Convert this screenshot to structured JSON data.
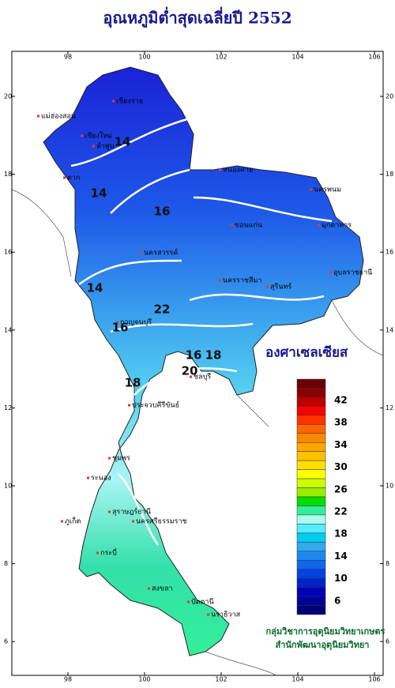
{
  "title": "อุณหภูมิต่ำสุดเฉลี่ยปี 2552",
  "map": {
    "lon_ticks": [
      98,
      100,
      102,
      104,
      106
    ],
    "lat_ticks": [
      20,
      18,
      16,
      14,
      12,
      10,
      8,
      6
    ],
    "places": [
      "เชียงราย",
      "เชียงใหม่",
      "ลำพูน",
      "แม่ฮ่องสอน",
      "ตาก",
      "หนองคาย",
      "นครพนม",
      "มุกดาหาร",
      "ขอนแก่น",
      "นครสวรรค์",
      "นครราชสีมา",
      "สุรินทร์",
      "อุบลราชธานี",
      "กาญจนบุรี",
      "ชลบุรี",
      "ประจวบคีรีขันธ์",
      "ชุมพร",
      "ระนอง",
      "สุราษฎร์ธานี",
      "นครศรีธรรมราช",
      "ภูเก็ต",
      "กระบี่",
      "สงขลา",
      "ปัตตานี",
      "นราธิวาส"
    ],
    "contour_labels": [
      "14",
      "14",
      "16",
      "14",
      "16",
      "16",
      "18",
      "20",
      "18",
      "22"
    ]
  },
  "legend": {
    "title": "องศาเซลเซียส",
    "labels": [
      "42",
      "38",
      "34",
      "30",
      "26",
      "22",
      "18",
      "14",
      "10",
      "6"
    ],
    "colors": [
      "#6b0000",
      "#8b0000",
      "#c00000",
      "#ff0000",
      "#ff3300",
      "#ff6600",
      "#ff8800",
      "#ffa500",
      "#ffc000",
      "#ffe000",
      "#ffff00",
      "#ccff00",
      "#99ee00",
      "#00dd00",
      "#33ee99",
      "#aaffee",
      "#55eeff",
      "#00ccee",
      "#33aaee",
      "#1e88ee",
      "#1166ee",
      "#0044dd",
      "#0022cc",
      "#0000bb",
      "#000099",
      "#000077"
    ]
  },
  "credits": [
    "กลุ่มวิชาการอุตุนิยมวิทยาเกษตร",
    "สำนักพัฒนาอุตุนิยมวิทยา"
  ]
}
